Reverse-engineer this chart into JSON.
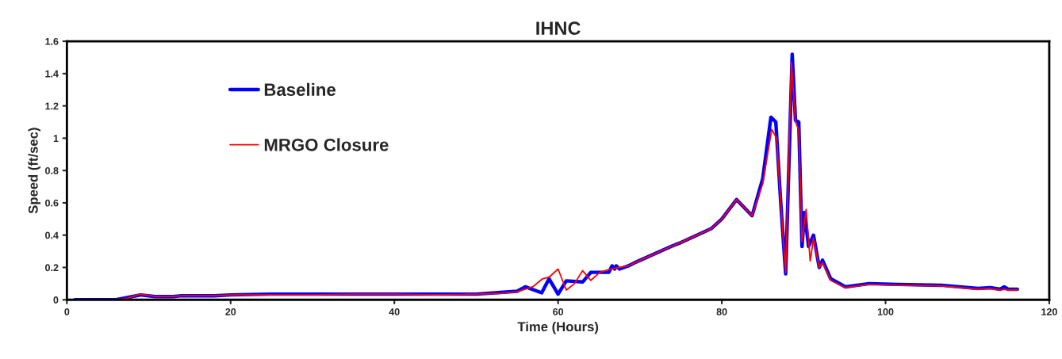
{
  "chart_data": {
    "type": "line",
    "title": "IHNC",
    "xlabel": "Time (Hours)",
    "ylabel": "Speed (ft/sec)",
    "xlim": [
      0,
      120
    ],
    "xticks": [
      0,
      20,
      40,
      60,
      80,
      100,
      120
    ],
    "ylim": [
      0,
      1.6
    ],
    "yticks": [
      0,
      0.2,
      0.4,
      0.6,
      0.8,
      1,
      1.2,
      1.4,
      1.6
    ],
    "grid": false,
    "legend": "top left",
    "marker": "none",
    "line_style": "solid",
    "series": [
      {
        "name": "Baseline",
        "color": "#0000ff",
        "x": [
          1,
          6,
          7.5,
          9,
          10.8,
          13,
          14,
          18,
          20,
          25,
          30,
          35,
          40,
          45,
          50,
          53,
          55,
          56,
          58,
          58.9,
          60,
          61,
          63,
          64,
          66.2,
          66.6,
          66.9,
          67.1,
          67.5,
          68.6,
          69.6,
          73.8,
          74.8,
          78.7,
          80,
          81.8,
          83.7,
          85,
          86,
          86.6,
          87.2,
          87.8,
          88.6,
          89,
          89.4,
          89.8,
          90.1,
          90.6,
          91.2,
          91.9,
          92.3,
          93.3,
          95.1,
          98,
          101.5,
          106.8,
          111.3,
          112.8,
          114,
          114.5,
          115,
          116.1
        ],
        "values": [
          0,
          0,
          0.015,
          0.03,
          0.02,
          0.02,
          0.025,
          0.025,
          0.03,
          0.035,
          0.035,
          0.035,
          0.035,
          0.035,
          0.035,
          0.045,
          0.053,
          0.08,
          0.043,
          0.13,
          0.035,
          0.117,
          0.11,
          0.17,
          0.17,
          0.21,
          0.19,
          0.21,
          0.19,
          0.21,
          0.235,
          0.33,
          0.35,
          0.44,
          0.5,
          0.62,
          0.52,
          0.75,
          1.13,
          1.1,
          0.6,
          0.16,
          1.52,
          1.11,
          1.1,
          0.33,
          0.54,
          0.33,
          0.4,
          0.2,
          0.245,
          0.13,
          0.08,
          0.1,
          0.095,
          0.09,
          0.07,
          0.075,
          0.065,
          0.08,
          0.065,
          0.065
        ]
      },
      {
        "name": "MRGO Closure",
        "color": "#ff0000",
        "x": [
          1,
          6,
          7.5,
          8.9,
          10.8,
          13,
          14,
          18,
          20,
          25,
          30,
          35,
          40,
          45,
          50,
          53,
          55,
          56.9,
          58.1,
          58.9,
          60,
          61,
          62,
          63,
          64,
          65.1,
          66.4,
          67.5,
          68.6,
          69.6,
          73.8,
          74.8,
          78.7,
          80,
          81.8,
          83.7,
          85,
          86.1,
          86.7,
          87.2,
          87.8,
          88.5,
          89,
          89.4,
          89.8,
          90.3,
          90.8,
          91.2,
          91.9,
          92.3,
          93.3,
          95.1,
          98,
          101.5,
          106.8,
          111.3,
          112.8,
          114,
          114.5,
          115,
          116.1
        ],
        "values": [
          0,
          0,
          0.01,
          0.035,
          0.02,
          0.02,
          0.025,
          0.025,
          0.03,
          0.03,
          0.03,
          0.035,
          0.035,
          0.03,
          0.035,
          0.04,
          0.05,
          0.08,
          0.13,
          0.14,
          0.19,
          0.06,
          0.1,
          0.18,
          0.12,
          0.17,
          0.19,
          0.2,
          0.21,
          0.235,
          0.33,
          0.35,
          0.44,
          0.5,
          0.62,
          0.52,
          0.72,
          1.055,
          1.0,
          0.6,
          0.17,
          1.47,
          1.1,
          1.05,
          0.36,
          0.56,
          0.24,
          0.38,
          0.2,
          0.23,
          0.12,
          0.075,
          0.095,
          0.09,
          0.085,
          0.065,
          0.07,
          0.06,
          0.065,
          0.06,
          0.06
        ]
      }
    ]
  }
}
